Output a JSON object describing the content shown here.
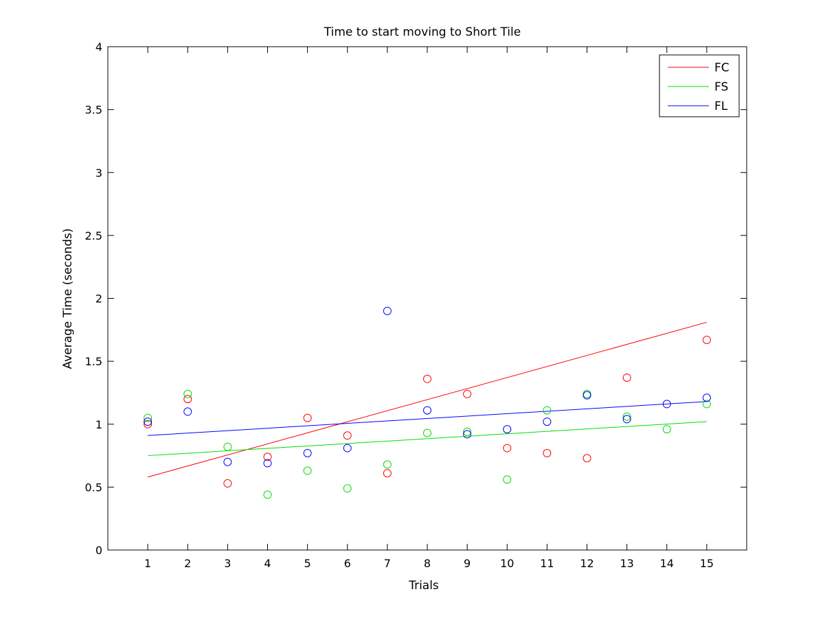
{
  "chart_data": {
    "type": "scatter",
    "title": "Time to start moving to Short Tile",
    "xlabel": "Trials",
    "ylabel": "Average Time (seconds)",
    "xlim": [
      0,
      16
    ],
    "ylim": [
      0,
      4
    ],
    "xticks": [
      1,
      2,
      3,
      4,
      5,
      6,
      7,
      8,
      9,
      10,
      11,
      12,
      13,
      14,
      15
    ],
    "yticks": [
      0,
      0.5,
      1,
      1.5,
      2,
      2.5,
      3,
      3.5,
      4
    ],
    "ytick_labels": [
      "0",
      "0.5",
      "1",
      "1.5",
      "2",
      "2.5",
      "3",
      "3.5",
      "4"
    ],
    "grid": false,
    "legend_position": "top-right",
    "series": [
      {
        "name": "FC",
        "color": "#ff0000",
        "x": [
          1,
          2,
          3,
          4,
          5,
          6,
          7,
          8,
          9,
          10,
          11,
          12,
          13,
          15
        ],
        "y": [
          1.0,
          1.2,
          0.53,
          0.74,
          1.05,
          0.91,
          0.61,
          1.36,
          1.24,
          0.81,
          0.77,
          0.73,
          1.37,
          1.67
        ],
        "trend": {
          "x": [
            1,
            15
          ],
          "y": [
            0.58,
            1.81
          ]
        }
      },
      {
        "name": "FS",
        "color": "#00dd00",
        "x": [
          1,
          2,
          3,
          4,
          5,
          6,
          7,
          8,
          9,
          10,
          11,
          12,
          13,
          14,
          15
        ],
        "y": [
          1.05,
          1.24,
          0.82,
          0.44,
          0.63,
          0.49,
          0.68,
          0.93,
          0.94,
          0.56,
          1.11,
          1.24,
          1.06,
          0.96,
          1.16
        ],
        "trend": {
          "x": [
            1,
            15
          ],
          "y": [
            0.75,
            1.02
          ]
        }
      },
      {
        "name": "FL",
        "color": "#0000ff",
        "x": [
          1,
          2,
          3,
          4,
          5,
          6,
          7,
          8,
          9,
          10,
          11,
          12,
          13,
          14,
          15
        ],
        "y": [
          1.02,
          1.1,
          0.7,
          0.69,
          0.77,
          0.81,
          1.9,
          1.11,
          0.92,
          0.96,
          1.02,
          1.23,
          1.04,
          1.16,
          1.21
        ],
        "trend": {
          "x": [
            1,
            15
          ],
          "y": [
            0.91,
            1.18
          ]
        }
      }
    ]
  }
}
